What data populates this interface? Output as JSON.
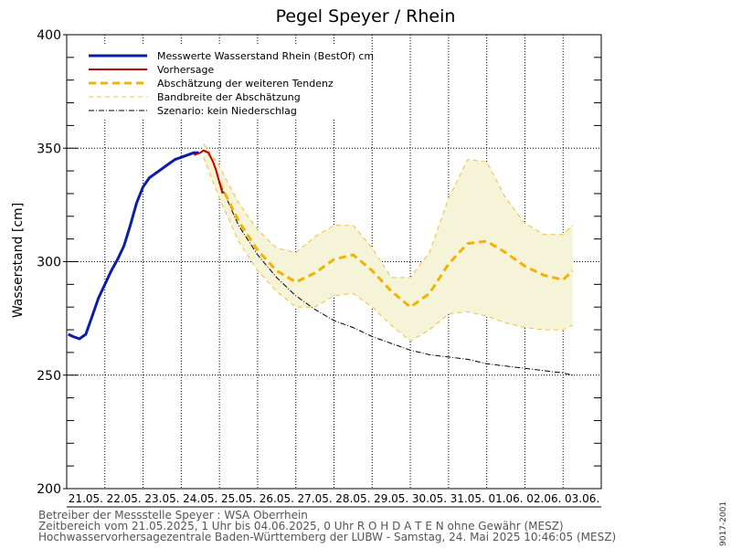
{
  "chart_data": {
    "type": "line",
    "title": "Pegel Speyer / Rhein",
    "ylabel": "Wasserstand [cm]",
    "xlabel": "",
    "ylim": [
      200,
      400
    ],
    "yticks": [
      200,
      250,
      300,
      350,
      400
    ],
    "xlim_days": [
      0,
      14
    ],
    "xticks": [
      "21.05.",
      "22.05.",
      "23.05.",
      "24.05.",
      "25.05.",
      "26.05.",
      "27.05.",
      "28.05.",
      "29.05.",
      "30.05.",
      "31.05.",
      "01.06.",
      "02.06.",
      "03.06."
    ],
    "grid": true,
    "legend_position": "top-left",
    "colors": {
      "measured": "#0a1fa8",
      "forecast": "#c00000",
      "trend": "#f0b400",
      "band": "#f5f3d8",
      "band_edge": "#f0c040",
      "scenario": "#000000"
    },
    "series": [
      {
        "name": "Messwerte Wasserstand Rhein (BestOf)  cm",
        "style": "solid-thick",
        "x": [
          "21.05. 01:00",
          "21.05. 04:00",
          "21.05. 08:00",
          "21.05. 12:00",
          "21.05. 16:00",
          "21.05. 20:00",
          "22.05. 00:00",
          "22.05. 04:00",
          "22.05. 08:00",
          "22.05. 12:00",
          "22.05. 16:00",
          "22.05. 20:00",
          "23.05. 00:00",
          "23.05. 04:00",
          "23.05. 08:00",
          "23.05. 12:00",
          "23.05. 16:00",
          "23.05. 20:00",
          "24.05. 00:00",
          "24.05. 04:00",
          "24.05. 08:00",
          "24.05. 11:00"
        ],
        "values": [
          268,
          267,
          266,
          268,
          276,
          284,
          290,
          296,
          301,
          307,
          316,
          326,
          333,
          337,
          339,
          341,
          343,
          345,
          346,
          347,
          348,
          348
        ]
      },
      {
        "name": "Vorhersage",
        "style": "solid",
        "x": [
          "24.05. 08:00",
          "24.05. 12:00",
          "24.05. 14:00",
          "24.05. 17:00",
          "24.05. 20:00",
          "24.05. 22:00",
          "25.05. 00:00",
          "25.05. 02:00"
        ],
        "values": [
          347,
          348,
          349,
          348,
          344,
          340,
          335,
          330
        ]
      },
      {
        "name": "Abschätzung der weiteren Tendenz",
        "style": "dashed-thick",
        "x": [
          "25.05. 00:00",
          "25.05. 12:00",
          "26.05. 00:00",
          "26.05. 12:00",
          "27.05. 00:00",
          "27.05. 12:00",
          "28.05. 00:00",
          "28.05. 12:00",
          "29.05. 00:00",
          "29.05. 12:00",
          "30.05. 00:00",
          "30.05. 12:00",
          "31.05. 00:00",
          "31.05. 12:00",
          "01.06. 00:00",
          "01.06. 12:00",
          "02.06. 00:00",
          "02.06. 12:00",
          "03.06. 00:00",
          "03.06. 06:00"
        ],
        "values": [
          335,
          318,
          305,
          296,
          291,
          295,
          301,
          303,
          296,
          287,
          280,
          286,
          299,
          308,
          309,
          304,
          298,
          294,
          292,
          296
        ]
      },
      {
        "name": "Bandbreite der Abschätzung",
        "style": "dashed-thin",
        "x": [
          "24.05. 14:00",
          "25.05. 00:00",
          "25.05. 12:00",
          "26.05. 00:00",
          "26.05. 12:00",
          "27.05. 00:00",
          "27.05. 12:00",
          "28.05. 00:00",
          "28.05. 12:00",
          "29.05. 00:00",
          "29.05. 12:00",
          "30.05. 00:00",
          "30.05. 12:00",
          "31.05. 00:00",
          "31.05. 12:00",
          "01.06. 00:00",
          "01.06. 12:00",
          "02.06. 00:00",
          "02.06. 12:00",
          "03.06. 00:00",
          "03.06. 06:00"
        ],
        "upper": [
          352,
          342,
          326,
          314,
          306,
          304,
          311,
          316,
          316,
          306,
          293,
          293,
          304,
          328,
          345,
          344,
          328,
          317,
          312,
          312,
          316
        ],
        "lower": [
          346,
          328,
          309,
          296,
          287,
          280,
          280,
          285,
          286,
          280,
          272,
          265,
          270,
          277,
          278,
          276,
          273,
          271,
          270,
          270,
          272
        ]
      },
      {
        "name": "Szenario: kein Niederschlag",
        "style": "dash-dot",
        "x": [
          "25.05. 00:00",
          "25.05. 12:00",
          "26.05. 00:00",
          "26.05. 12:00",
          "27.05. 00:00",
          "27.05. 12:00",
          "28.05. 00:00",
          "28.05. 12:00",
          "29.05. 00:00",
          "29.05. 12:00",
          "30.05. 00:00",
          "30.05. 12:00",
          "31.05. 00:00",
          "31.05. 12:00",
          "01.06. 00:00",
          "01.06. 12:00",
          "02.06. 00:00",
          "02.06. 12:00",
          "03.06. 00:00",
          "03.06. 06:00"
        ],
        "values": [
          335,
          316,
          303,
          293,
          285,
          279,
          274,
          271,
          267,
          264,
          261,
          259,
          258,
          257,
          255,
          254,
          253,
          252,
          251,
          250
        ]
      }
    ]
  },
  "footer": {
    "line1": "Betreiber der Messstelle Speyer : WSA Oberrhein",
    "line2": "Zeitbereich vom 21.05.2025, 1 Uhr bis 04.06.2025, 0 Uhr    R O H D A T E N ohne Gewähr (MESZ)",
    "line3": "Hochwasservorhersagezentrale Baden-Württemberg der LUBW - Samstag, 24. Mai 2025 10:46:05 (MESZ)"
  },
  "side_label": "9017-2001"
}
